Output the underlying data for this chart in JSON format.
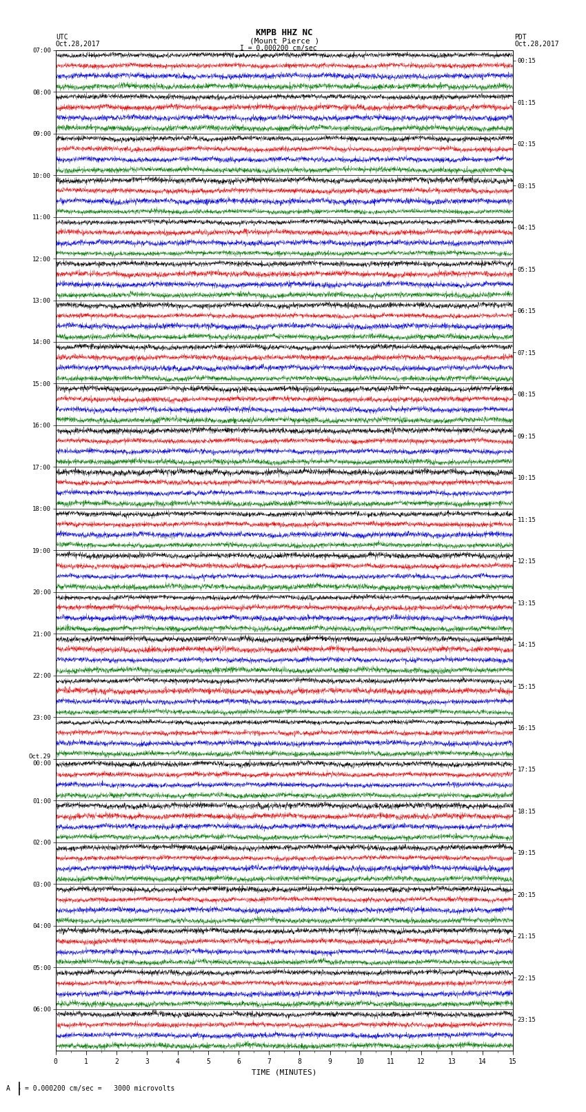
{
  "title_line1": "KMPB HHZ NC",
  "title_line2": "(Mount Pierce )",
  "title_line3": "I = 0.000200 cm/sec",
  "label_utc": "UTC",
  "label_pdt": "PDT",
  "date_left": "Oct.28,2017",
  "date_right": "Oct.28,2017",
  "left_times": [
    "07:00",
    "08:00",
    "09:00",
    "10:00",
    "11:00",
    "12:00",
    "13:00",
    "14:00",
    "15:00",
    "16:00",
    "17:00",
    "18:00",
    "19:00",
    "20:00",
    "21:00",
    "22:00",
    "23:00",
    "Oct.29\n00:00",
    "01:00",
    "02:00",
    "03:00",
    "04:00",
    "05:00",
    "06:00"
  ],
  "right_times": [
    "00:15",
    "01:15",
    "02:15",
    "03:15",
    "04:15",
    "05:15",
    "06:15",
    "07:15",
    "08:15",
    "09:15",
    "10:15",
    "11:15",
    "12:15",
    "13:15",
    "14:15",
    "15:15",
    "16:15",
    "17:15",
    "18:15",
    "19:15",
    "20:15",
    "21:15",
    "22:15",
    "23:15"
  ],
  "xlabel": "TIME (MINUTES)",
  "scale_label": "= 0.000200 cm/sec =   3000 microvolts",
  "n_hour_groups": 24,
  "traces_per_group": 4,
  "colors": [
    "black",
    "red",
    "blue",
    "green"
  ],
  "x_min": 0,
  "x_max": 15,
  "x_ticks": [
    0,
    1,
    2,
    3,
    4,
    5,
    6,
    7,
    8,
    9,
    10,
    11,
    12,
    13,
    14,
    15
  ],
  "bg_color": "white",
  "fig_width": 8.5,
  "fig_height": 16.13,
  "seed": 42
}
